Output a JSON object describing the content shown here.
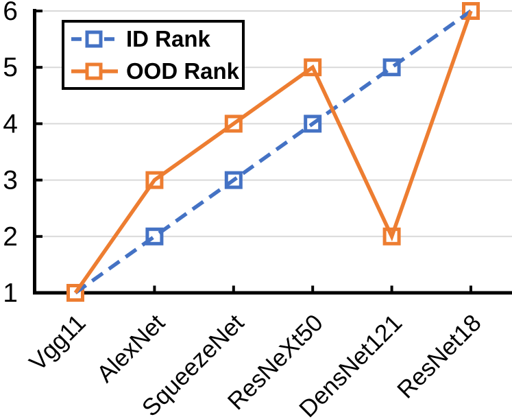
{
  "chart_data": {
    "type": "line",
    "title": "",
    "xlabel": "",
    "ylabel": "",
    "categories": [
      "Vgg11",
      "AlexNet",
      "SqueezeNet",
      "ResNeXt50",
      "DensNet121",
      "ResNet18"
    ],
    "series": [
      {
        "name": "ID Rank",
        "values": [
          1,
          2,
          3,
          4,
          5,
          6
        ],
        "color": "#4472C4",
        "line_style": "dashed",
        "marker": "open-square"
      },
      {
        "name": "OOD Rank",
        "values": [
          1,
          3,
          4,
          5,
          2,
          6
        ],
        "color": "#ED7D31",
        "line_style": "solid",
        "marker": "open-square"
      }
    ],
    "ylim": [
      1,
      6
    ],
    "yticks": [
      1,
      2,
      3,
      4,
      5,
      6
    ],
    "grid": true,
    "legend_position": "top-left",
    "colors": {
      "axis": "#000000",
      "gridline": "#d9d9d9",
      "text": "#000000",
      "marker_fill": "#ffffff",
      "legend_border": "#000000",
      "background": "#ffffff"
    }
  }
}
